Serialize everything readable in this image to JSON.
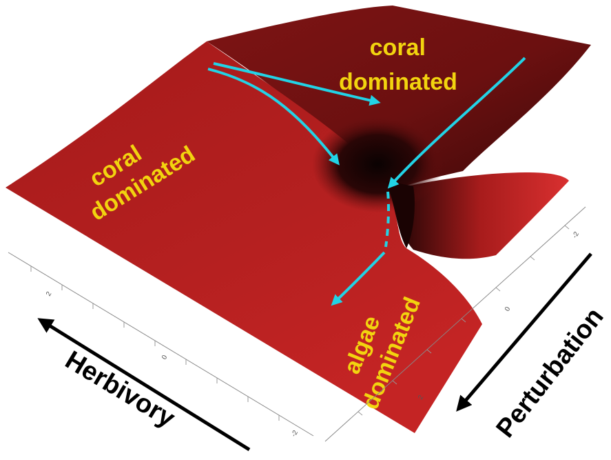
{
  "diagram": {
    "surface_color": "#b21f1f",
    "arrow_color": "#22d3e6",
    "label_color": "#f2d40f",
    "regions": {
      "top_right": {
        "line1": "coral",
        "line2": "dominated"
      },
      "left": {
        "line1": "coral",
        "line2": "dominated"
      },
      "bottom": {
        "line1": "algae",
        "line2": "dominated"
      }
    },
    "axes": {
      "herbivory": {
        "title": "Herbivory",
        "ticks": [
          "2",
          "0",
          "-2"
        ]
      },
      "perturbation": {
        "title": "Perturbation",
        "ticks": [
          "-2",
          "0",
          "2"
        ]
      }
    }
  }
}
